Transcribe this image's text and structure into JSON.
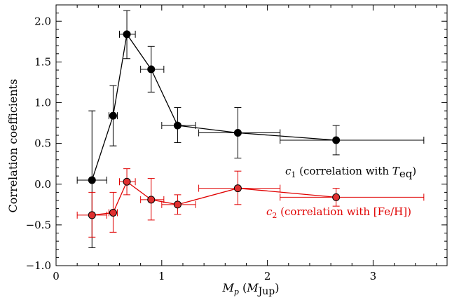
{
  "chart_data": {
    "type": "line",
    "xlabel": {
      "main": "M",
      "sub": "p",
      "paren_main": "M",
      "paren_sub": "Jup"
    },
    "ylabel": "Correlation coefficients",
    "xlim": [
      0,
      3.7
    ],
    "ylim": [
      -1.0,
      2.2
    ],
    "xticks": [
      0,
      1,
      2,
      3
    ],
    "xtick_labels": [
      "0",
      "1",
      "2",
      "3"
    ],
    "yticks": [
      -1.0,
      -0.5,
      0.0,
      0.5,
      1.0,
      1.5,
      2.0
    ],
    "ytick_labels": [
      "−1.0",
      "−0.5",
      "0.0",
      "0.5",
      "1.0",
      "1.5",
      "2.0"
    ],
    "grid": false,
    "series": [
      {
        "color": "#000000",
        "marker_fill": "#000000",
        "x": [
          0.34,
          0.54,
          0.67,
          0.9,
          1.15,
          1.72,
          2.65
        ],
        "y": [
          0.05,
          0.84,
          1.84,
          1.41,
          0.72,
          0.63,
          0.54
        ],
        "x_lo": [
          0.2,
          0.5,
          0.6,
          0.8,
          1.0,
          1.35,
          2.12
        ],
        "x_hi": [
          0.48,
          0.58,
          0.75,
          1.02,
          1.32,
          2.12,
          3.48
        ],
        "y_lo": [
          -0.78,
          0.47,
          1.54,
          1.13,
          0.51,
          0.32,
          0.36
        ],
        "y_hi": [
          0.9,
          1.21,
          2.13,
          1.69,
          0.94,
          0.94,
          0.72
        ]
      },
      {
        "color": "#e00000",
        "marker_fill": "#e03030",
        "x": [
          0.34,
          0.54,
          0.67,
          0.9,
          1.15,
          1.72,
          2.65
        ],
        "y": [
          -0.38,
          -0.35,
          0.03,
          -0.19,
          -0.25,
          -0.05,
          -0.16
        ],
        "x_lo": [
          0.2,
          0.5,
          0.6,
          0.8,
          1.0,
          1.35,
          2.12
        ],
        "x_hi": [
          0.48,
          0.58,
          0.75,
          1.02,
          1.32,
          2.12,
          3.48
        ],
        "y_lo": [
          -0.65,
          -0.59,
          -0.13,
          -0.44,
          -0.37,
          -0.25,
          -0.27
        ],
        "y_hi": [
          -0.1,
          -0.1,
          0.19,
          0.07,
          -0.13,
          0.16,
          -0.05
        ]
      }
    ],
    "annotations": [
      {
        "color": "#000000",
        "prefix_var": "c",
        "prefix_sub": "1",
        "text": " (correlation with ",
        "var": "T",
        "var_sub": "eq",
        "suffix": ")"
      },
      {
        "color": "#e00000",
        "prefix_var": "c",
        "prefix_sub": "2",
        "text": " (correlation with [Fe/H])",
        "var": "",
        "var_sub": "",
        "suffix": ""
      }
    ]
  }
}
